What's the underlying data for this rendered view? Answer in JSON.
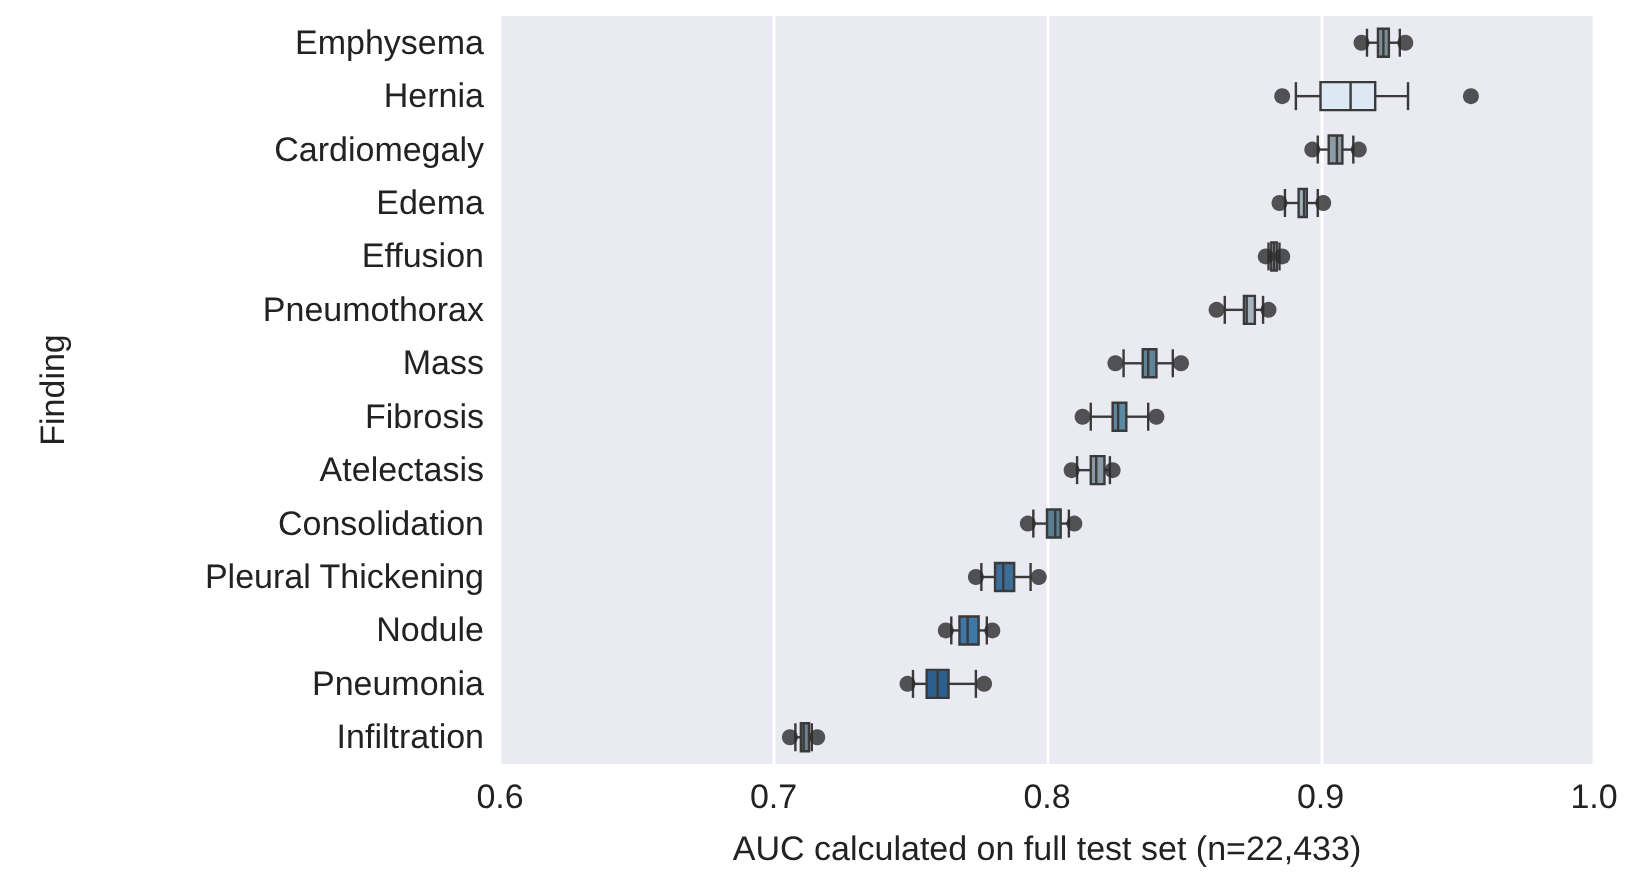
{
  "chart_data": {
    "type": "box",
    "orientation": "horizontal",
    "xlabel": "AUC calculated on full test set (n=22,433)",
    "ylabel": "Finding",
    "categories": [
      "Emphysema",
      "Hernia",
      "Cardiomegaly",
      "Edema",
      "Effusion",
      "Pneumothorax",
      "Mass",
      "Fibrosis",
      "Atelectasis",
      "Consolidation",
      "Pleural Thickening",
      "Nodule",
      "Pneumonia",
      "Infiltration"
    ],
    "boxes": [
      {
        "low": 0.917,
        "q1": 0.921,
        "median": 0.923,
        "q3": 0.925,
        "high": 0.929,
        "outliers": [
          0.915,
          0.931
        ]
      },
      {
        "low": 0.891,
        "q1": 0.9,
        "median": 0.911,
        "q3": 0.92,
        "high": 0.932,
        "outliers": [
          0.886,
          0.955
        ]
      },
      {
        "low": 0.899,
        "q1": 0.903,
        "median": 0.906,
        "q3": 0.908,
        "high": 0.912,
        "outliers": [
          0.897,
          0.914
        ]
      },
      {
        "low": 0.887,
        "q1": 0.892,
        "median": 0.894,
        "q3": 0.895,
        "high": 0.899,
        "outliers": [
          0.885,
          0.901
        ]
      },
      {
        "low": 0.881,
        "q1": 0.882,
        "median": 0.883,
        "q3": 0.884,
        "high": 0.885,
        "outliers": [
          0.88,
          0.886
        ]
      },
      {
        "low": 0.865,
        "q1": 0.872,
        "median": 0.873,
        "q3": 0.876,
        "high": 0.879,
        "outliers": [
          0.862,
          0.881
        ]
      },
      {
        "low": 0.828,
        "q1": 0.835,
        "median": 0.837,
        "q3": 0.84,
        "high": 0.846,
        "outliers": [
          0.825,
          0.849
        ]
      },
      {
        "low": 0.816,
        "q1": 0.824,
        "median": 0.826,
        "q3": 0.829,
        "high": 0.837,
        "outliers": [
          0.813,
          0.84
        ]
      },
      {
        "low": 0.811,
        "q1": 0.816,
        "median": 0.818,
        "q3": 0.821,
        "high": 0.823,
        "outliers": [
          0.809,
          0.824
        ]
      },
      {
        "low": 0.795,
        "q1": 0.8,
        "median": 0.803,
        "q3": 0.805,
        "high": 0.808,
        "outliers": [
          0.793,
          0.81
        ]
      },
      {
        "low": 0.776,
        "q1": 0.781,
        "median": 0.784,
        "q3": 0.788,
        "high": 0.794,
        "outliers": [
          0.774,
          0.797
        ]
      },
      {
        "low": 0.765,
        "q1": 0.768,
        "median": 0.771,
        "q3": 0.775,
        "high": 0.778,
        "outliers": [
          0.763,
          0.78
        ]
      },
      {
        "low": 0.751,
        "q1": 0.756,
        "median": 0.76,
        "q3": 0.764,
        "high": 0.774,
        "outliers": [
          0.749,
          0.777
        ]
      },
      {
        "low": 0.708,
        "q1": 0.71,
        "median": 0.711,
        "q3": 0.713,
        "high": 0.714,
        "outliers": [
          0.706,
          0.716
        ]
      }
    ],
    "colors": [
      "#7f8c93",
      "#dce9f4",
      "#8d9ba6",
      "#9fb0bc",
      "#b8c6cf",
      "#a6b4bd",
      "#5e8597",
      "#5c8aa2",
      "#8a9aa5",
      "#5a7f90",
      "#3d6e98",
      "#3f78a6",
      "#2c5f8e",
      "#6c7f8c"
    ],
    "xlim": [
      0.6,
      1.0
    ],
    "xticks": [
      0.6,
      0.7,
      0.8,
      0.9,
      {
        "value": 1,
        "label": "1.0"
      }
    ],
    "grid": "x"
  }
}
